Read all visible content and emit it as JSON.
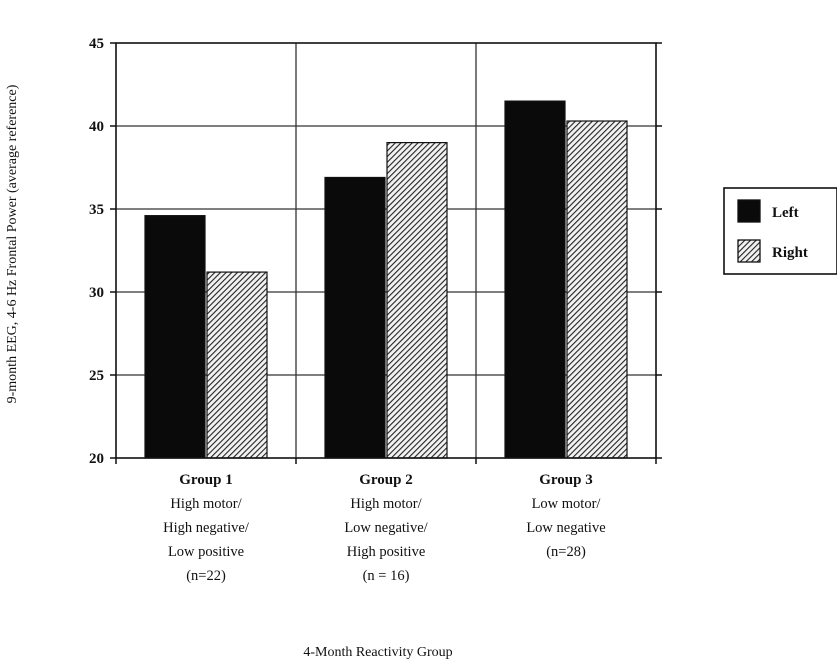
{
  "chart_data": {
    "type": "bar",
    "xlabel": "4-Month Reactivity Group",
    "ylabel": "9-month EEG, 4-6 Hz Frontal Power (average reference)",
    "ylim": [
      20,
      45
    ],
    "yticks": [
      20,
      25,
      30,
      35,
      40,
      45
    ],
    "grid": true,
    "legend_position": "right",
    "categories": [
      {
        "lines": [
          "Group 1",
          "High motor/",
          "High negative/",
          "Low positive",
          "(n=22)"
        ]
      },
      {
        "lines": [
          "Group 2",
          "High motor/",
          "Low negative/",
          "High positive",
          "(n = 16)"
        ]
      },
      {
        "lines": [
          "Group 3",
          "Low motor/",
          "Low negative",
          "(n=28)"
        ]
      }
    ],
    "series": [
      {
        "name": "Left",
        "values": [
          34.6,
          36.9,
          41.5
        ],
        "color": "#0a0a0a",
        "pattern": "solid"
      },
      {
        "name": "Right",
        "values": [
          31.2,
          39.0,
          40.3
        ],
        "color": "#333333",
        "pattern": "diagonal-hatch"
      }
    ]
  }
}
